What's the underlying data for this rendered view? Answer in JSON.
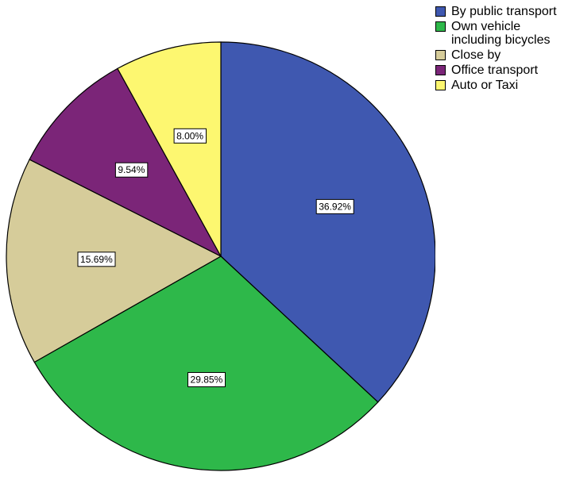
{
  "chart_data": {
    "type": "pie",
    "title": "",
    "legend_position": "top-right",
    "start_angle_deg": 0,
    "direction": "clockwise",
    "categories": [
      "By public transport",
      "Own vehicle\nincluding bicycles",
      "Close by",
      "Office transport",
      "Auto or Taxi"
    ],
    "values": [
      36.92,
      29.85,
      15.69,
      9.54,
      8.0
    ],
    "data_labels": [
      "36.92%",
      "29.85%",
      "15.69%",
      "9.54%",
      "8.00%"
    ],
    "colors": [
      "#3f58b0",
      "#2eb84a",
      "#d6cc9a",
      "#7b2578",
      "#fdf770"
    ]
  }
}
